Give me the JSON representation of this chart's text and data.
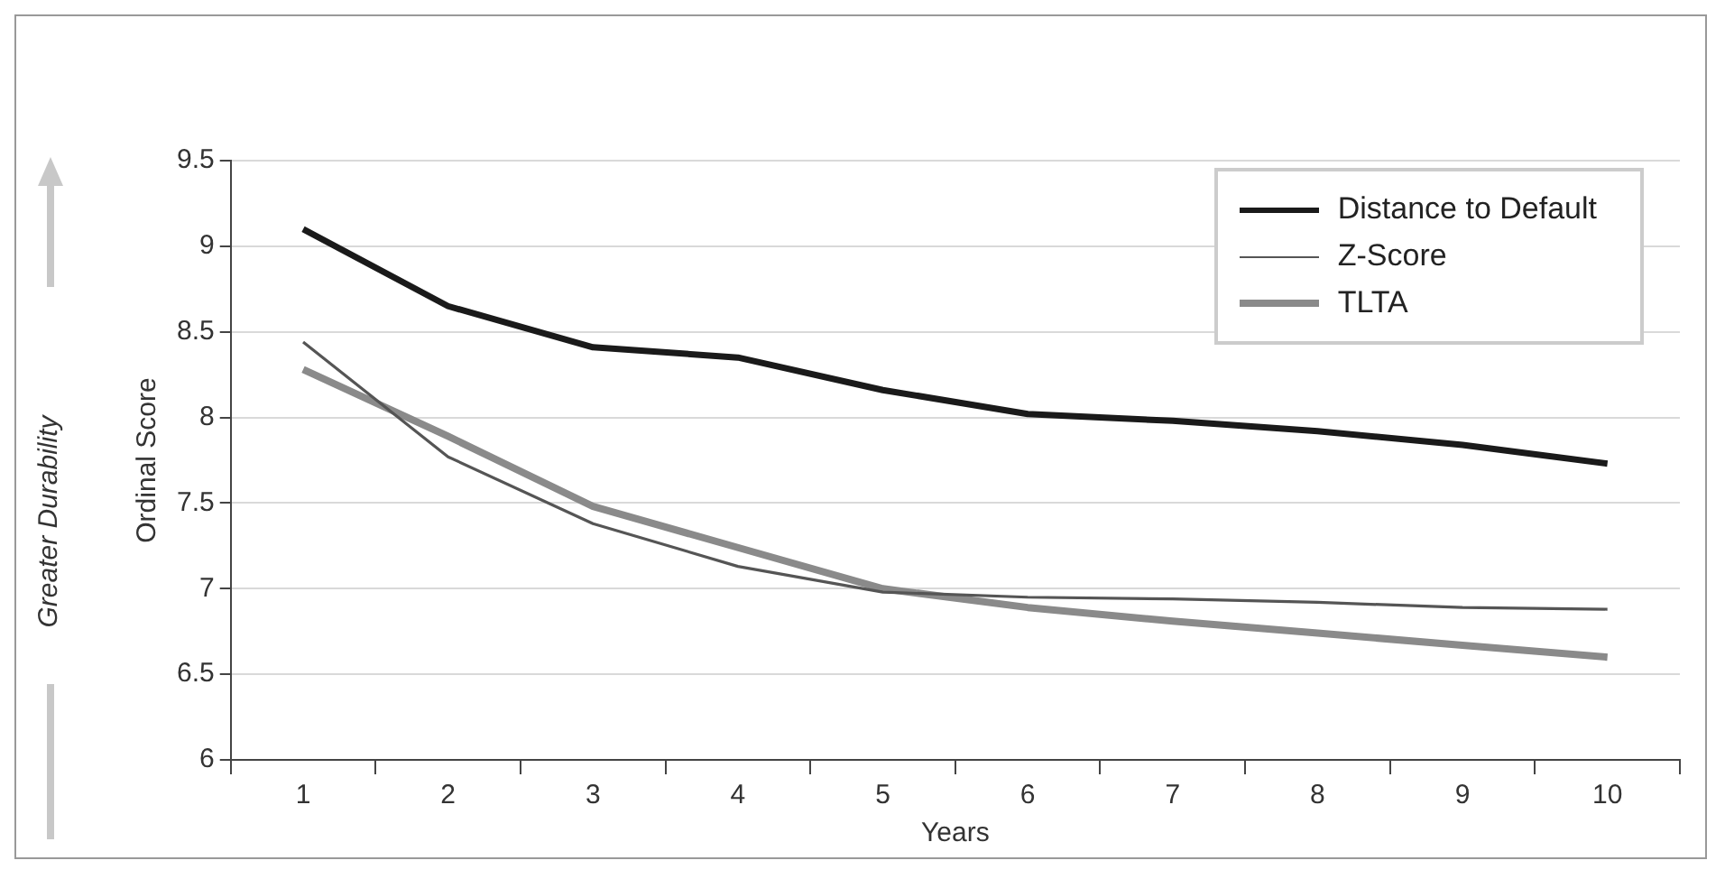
{
  "chart_data": {
    "type": "line",
    "xlabel": "Years",
    "ylabel": "Ordinal Score",
    "annotations": [
      "Greater Durability"
    ],
    "categories": [
      "1",
      "2",
      "3",
      "4",
      "5",
      "6",
      "7",
      "8",
      "9",
      "10"
    ],
    "series": [
      {
        "name": "Distance to Default",
        "color": "#1a1a1a",
        "values": [
          9.1,
          8.65,
          8.41,
          8.35,
          8.16,
          8.02,
          7.98,
          7.92,
          7.84,
          7.73
        ]
      },
      {
        "name": "Z-Score",
        "color": "#555555",
        "values": [
          8.44,
          7.77,
          7.38,
          7.13,
          6.98,
          6.95,
          6.94,
          6.92,
          6.89,
          6.88
        ]
      },
      {
        "name": "TLTA",
        "color": "#8a8a8a",
        "values": [
          8.28,
          7.89,
          7.48,
          7.24,
          7.0,
          6.89,
          6.81,
          6.74,
          6.67,
          6.6
        ]
      }
    ],
    "ylim": [
      6,
      9.5
    ],
    "yticks": [
      6,
      6.5,
      7,
      7.5,
      8,
      8.5,
      9,
      9.5
    ],
    "grid": "y",
    "legend": "top right",
    "marker": "none",
    "line_style": "solid"
  }
}
